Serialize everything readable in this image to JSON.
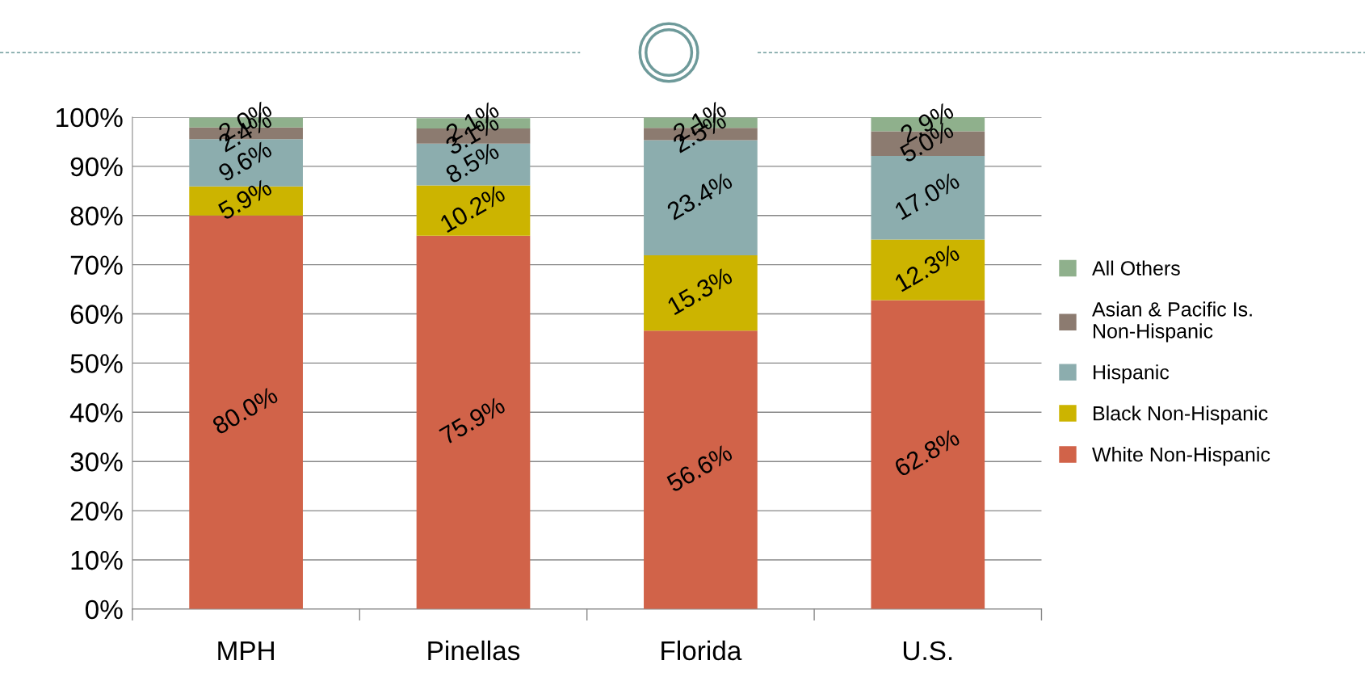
{
  "chart_data": {
    "type": "bar",
    "stacked": true,
    "categories": [
      "MPH",
      "Pinellas",
      "Florida",
      "U.S."
    ],
    "series": [
      {
        "name": "White Non-Hispanic",
        "color": "#d16349",
        "values": [
          80.0,
          75.9,
          56.6,
          62.8
        ],
        "value_labels": [
          "80.0%",
          "75.9%",
          "56.6%",
          "62.8%"
        ]
      },
      {
        "name": "Black Non-Hispanic",
        "color": "#ccb400",
        "values": [
          5.9,
          10.2,
          15.3,
          12.3
        ],
        "value_labels": [
          "5.9%",
          "10.2%",
          "15.3%",
          "12.3%"
        ]
      },
      {
        "name": "Hispanic",
        "color": "#8cadae",
        "values": [
          9.6,
          8.5,
          23.4,
          17.0
        ],
        "value_labels": [
          "9.6%",
          "8.5%",
          "23.4%",
          "17.0%"
        ]
      },
      {
        "name": "Asian & Pacific Is.\nNon-Hispanic",
        "color": "#8c7b70",
        "values": [
          2.4,
          3.1,
          2.5,
          5.0
        ],
        "value_labels": [
          "2.4%",
          "3.1%",
          "2.5%",
          "5.0%"
        ]
      },
      {
        "name": "All Others",
        "color": "#8fb08c",
        "values": [
          2.0,
          2.1,
          2.1,
          2.9
        ],
        "value_labels": [
          "2.0%",
          "2.1%",
          "2.1%",
          "2.9%"
        ]
      }
    ],
    "ylim": [
      0,
      100
    ],
    "yticks": [
      {
        "value": 0,
        "label": "0%"
      },
      {
        "value": 10,
        "label": "10%"
      },
      {
        "value": 20,
        "label": "20%"
      },
      {
        "value": 30,
        "label": "30%"
      },
      {
        "value": 40,
        "label": "40%"
      },
      {
        "value": 50,
        "label": "50%"
      },
      {
        "value": 60,
        "label": "60%"
      },
      {
        "value": 70,
        "label": "70%"
      },
      {
        "value": 80,
        "label": "80%"
      },
      {
        "value": 90,
        "label": "90%"
      },
      {
        "value": 100,
        "label": "100%"
      }
    ],
    "grid": "y",
    "legend": "right"
  }
}
